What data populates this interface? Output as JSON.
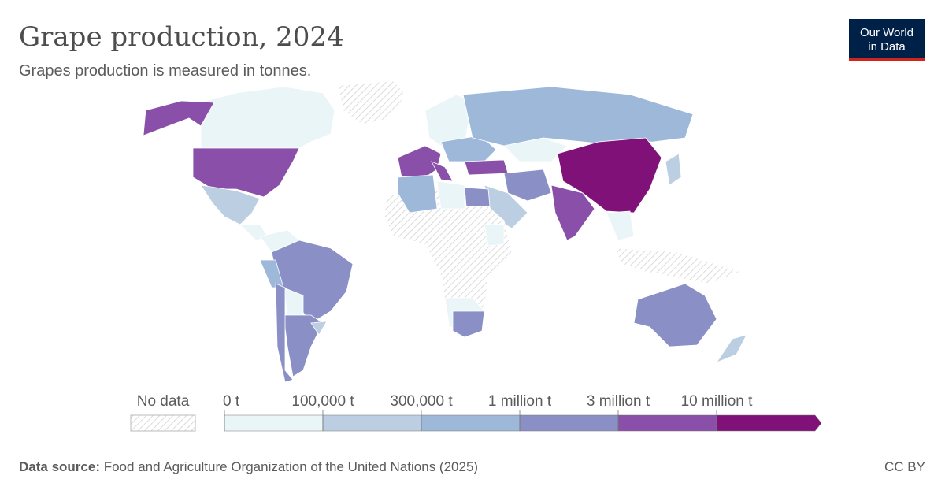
{
  "header": {
    "title": "Grape production, 2024",
    "subtitle": "Grapes production is measured in tonnes."
  },
  "logo": {
    "lines": [
      "Our World",
      "in Data"
    ]
  },
  "legend": {
    "no_data": "No data",
    "ticks": [
      "0 t",
      "100,000 t",
      "300,000 t",
      "1 million t",
      "3 million t",
      "10 million t"
    ],
    "colors": [
      "#eaf5f8",
      "#bccfe2",
      "#9db8d9",
      "#8a8fc6",
      "#8a4fa8",
      "#801179"
    ]
  },
  "footer": {
    "source_label": "Data source:",
    "source": "Food and Agriculture Organization of the United Nations (2025)",
    "license": "CC BY"
  }
}
